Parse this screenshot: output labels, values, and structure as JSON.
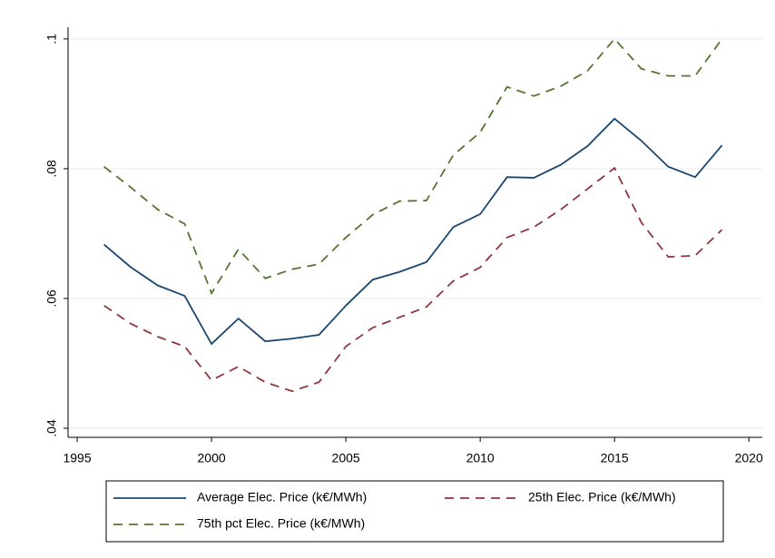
{
  "chart_data": {
    "type": "line",
    "x": [
      1996,
      1997,
      1998,
      1999,
      2000,
      2001,
      2002,
      2003,
      2004,
      2005,
      2006,
      2007,
      2008,
      2009,
      2010,
      2011,
      2012,
      2013,
      2014,
      2015,
      2016,
      2017,
      2018,
      2019
    ],
    "series": [
      {
        "name": "Average Elec. Price (k€/MWh)",
        "color": "#1a476f",
        "dash": "solid",
        "values": [
          0.0683,
          0.0648,
          0.062,
          0.0604,
          0.053,
          0.0569,
          0.0534,
          0.0538,
          0.0544,
          0.0589,
          0.0629,
          0.0641,
          0.0656,
          0.071,
          0.073,
          0.0787,
          0.0786,
          0.0806,
          0.0835,
          0.0877,
          0.0843,
          0.0803,
          0.0787,
          0.0836
        ]
      },
      {
        "name": "25th Elec. Price (k€/MWh)",
        "color": "#90353b",
        "dash": "dashed",
        "values": [
          0.0589,
          0.0561,
          0.0541,
          0.0526,
          0.0474,
          0.0495,
          0.0471,
          0.0457,
          0.0471,
          0.0526,
          0.0555,
          0.0571,
          0.0587,
          0.0627,
          0.0648,
          0.0694,
          0.071,
          0.0737,
          0.0769,
          0.0801,
          0.0717,
          0.0664,
          0.0666,
          0.0706
        ]
      },
      {
        "name": "75th pct Elec. Price (k€/MWh)",
        "color": "#55752f",
        "dash": "dashed",
        "values": [
          0.0803,
          0.0771,
          0.0737,
          0.0715,
          0.0608,
          0.0676,
          0.0631,
          0.0645,
          0.0653,
          0.0694,
          0.0729,
          0.075,
          0.0751,
          0.0821,
          0.0856,
          0.0926,
          0.0912,
          0.0927,
          0.0951,
          0.1,
          0.0954,
          0.0943,
          0.0943,
          0.1
        ]
      }
    ],
    "xlim": [
      1994.66,
      2020.5
    ],
    "ylim": [
      0.0386,
      0.1018
    ],
    "xticks": [
      1995,
      2000,
      2005,
      2010,
      2015,
      2020
    ],
    "yticks": [
      {
        "value": 0.04,
        "label": ".04"
      },
      {
        "value": 0.06,
        "label": ".06"
      },
      {
        "value": 0.08,
        "label": ".08"
      },
      {
        "value": 0.1,
        "label": ".1"
      }
    ],
    "grid": true,
    "legend_position": "bottom"
  }
}
